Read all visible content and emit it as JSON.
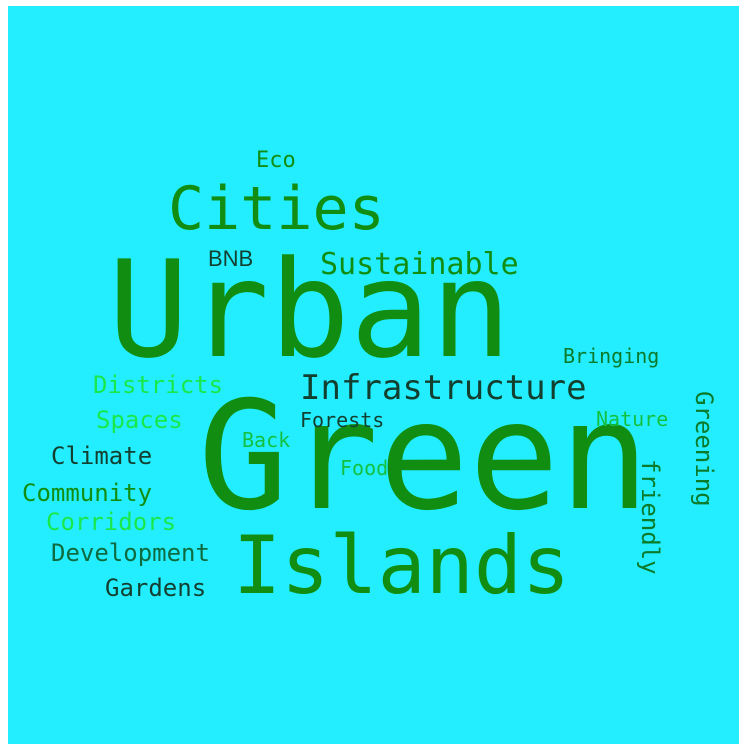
{
  "background_color": "#23eeff",
  "palette": [
    "#118e11",
    "#0b7a2a",
    "#133f2f",
    "#19e84a",
    "#13c13e",
    "#0d6b3f"
  ],
  "words": {
    "urban": "Urban",
    "green": "Green",
    "islands": "Islands",
    "cities": "Cities",
    "infrastructure": "Infrastructure",
    "sustainable": "Sustainable",
    "eco": "Eco",
    "bnb": "BNB",
    "bringing": "Bringing",
    "greening": "Greening",
    "friendly": "friendly",
    "nature": "Nature",
    "districts": "Districts",
    "spaces": "Spaces",
    "forests": "Forests",
    "back": "Back",
    "climate": "Climate",
    "food": "Food",
    "community": "Community",
    "corridors": "Corridors",
    "development": "Development",
    "gardens": "Gardens"
  }
}
